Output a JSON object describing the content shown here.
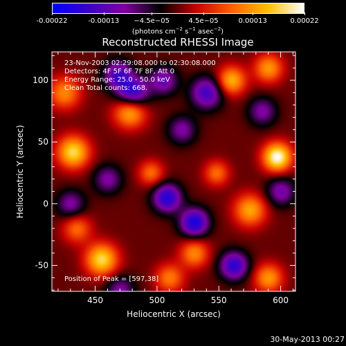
{
  "colorbar": {
    "ticks": [
      "-0.00022",
      "-0.00013",
      "−4.5e−05",
      "4.5e−05",
      "0.00013",
      "0.00022"
    ],
    "unit_prefix": "(photons cm",
    "unit_sup1": "−2",
    "unit_mid": " s",
    "unit_sup2": "−1",
    "unit_mid2": " asec",
    "unit_sup3": "−2",
    "unit_suffix": ")"
  },
  "annotations": {
    "line1": "23-Nov-2003 02:29:08.000 to 02:30:08.000",
    "line2": "Detectors: 4F 5F 6F 7F 8F, Att 0",
    "line3": "Energy Range: 25.0 - 50.0 keV",
    "line4": "Clean     Total counts: 668.",
    "peak": "Position of Peak = [597,38]"
  },
  "footer": "30-May-2013 00:27",
  "chart_data": {
    "type": "heatmap",
    "title": "Reconstructed RHESSI Image",
    "xlabel": "Heliocentric X (arcsec)",
    "ylabel": "Heliocentric Y (arcsec)",
    "xlim": [
      415,
      612
    ],
    "ylim": [
      -71,
      123
    ],
    "xticks": [
      450,
      500,
      550,
      600
    ],
    "yticks": [
      -50,
      0,
      50,
      100
    ],
    "zlim": [
      -0.00022,
      0.00022
    ],
    "peak": [
      597,
      38
    ],
    "colormap": [
      "#0000ff",
      "#3a00c8",
      "#8000a0",
      "#000000",
      "#c80000",
      "#ff6000",
      "#ffc000",
      "#ffffff"
    ],
    "sources": [
      {
        "x": 597,
        "y": 38,
        "amp": 0.00022,
        "sigma": 8
      },
      {
        "x": 432,
        "y": 42,
        "amp": 0.00018,
        "sigma": 9
      },
      {
        "x": 478,
        "y": 75,
        "amp": 0.00016,
        "sigma": 9
      },
      {
        "x": 560,
        "y": 100,
        "amp": 0.00015,
        "sigma": 8
      },
      {
        "x": 590,
        "y": 110,
        "amp": 0.00013,
        "sigma": 8
      },
      {
        "x": 455,
        "y": -45,
        "amp": 0.00018,
        "sigma": 9
      },
      {
        "x": 425,
        "y": 90,
        "amp": 0.00012,
        "sigma": 9
      },
      {
        "x": 575,
        "y": -5,
        "amp": 0.00014,
        "sigma": 9
      },
      {
        "x": 548,
        "y": 25,
        "amp": 0.0001,
        "sigma": 7
      },
      {
        "x": 530,
        "y": -40,
        "amp": 0.00012,
        "sigma": 8
      },
      {
        "x": 590,
        "y": -60,
        "amp": 0.00013,
        "sigma": 8
      },
      {
        "x": 435,
        "y": -20,
        "amp": 0.0001,
        "sigma": 8
      },
      {
        "x": 495,
        "y": 25,
        "amp": 0.0001,
        "sigma": 7
      },
      {
        "x": 510,
        "y": -60,
        "amp": 0.00011,
        "sigma": 8
      },
      {
        "x": 480,
        "y": 90,
        "amp": -0.00018,
        "sigma": 9
      },
      {
        "x": 468,
        "y": 105,
        "amp": -0.00014,
        "sigma": 8
      },
      {
        "x": 508,
        "y": 5,
        "amp": -0.00018,
        "sigma": 8
      },
      {
        "x": 530,
        "y": -15,
        "amp": -0.00019,
        "sigma": 8
      },
      {
        "x": 562,
        "y": -50,
        "amp": -0.00017,
        "sigma": 8
      },
      {
        "x": 540,
        "y": 90,
        "amp": -0.00015,
        "sigma": 9
      },
      {
        "x": 505,
        "y": 100,
        "amp": -0.00012,
        "sigma": 8
      },
      {
        "x": 460,
        "y": 20,
        "amp": -0.0001,
        "sigma": 8
      },
      {
        "x": 600,
        "y": 10,
        "amp": -0.00011,
        "sigma": 8
      },
      {
        "x": 430,
        "y": 0,
        "amp": -0.0001,
        "sigma": 8
      },
      {
        "x": 585,
        "y": 75,
        "amp": -0.0001,
        "sigma": 8
      },
      {
        "x": 520,
        "y": 60,
        "amp": -0.0001,
        "sigma": 8
      },
      {
        "x": 470,
        "y": -70,
        "amp": -0.0001,
        "sigma": 8
      }
    ]
  }
}
